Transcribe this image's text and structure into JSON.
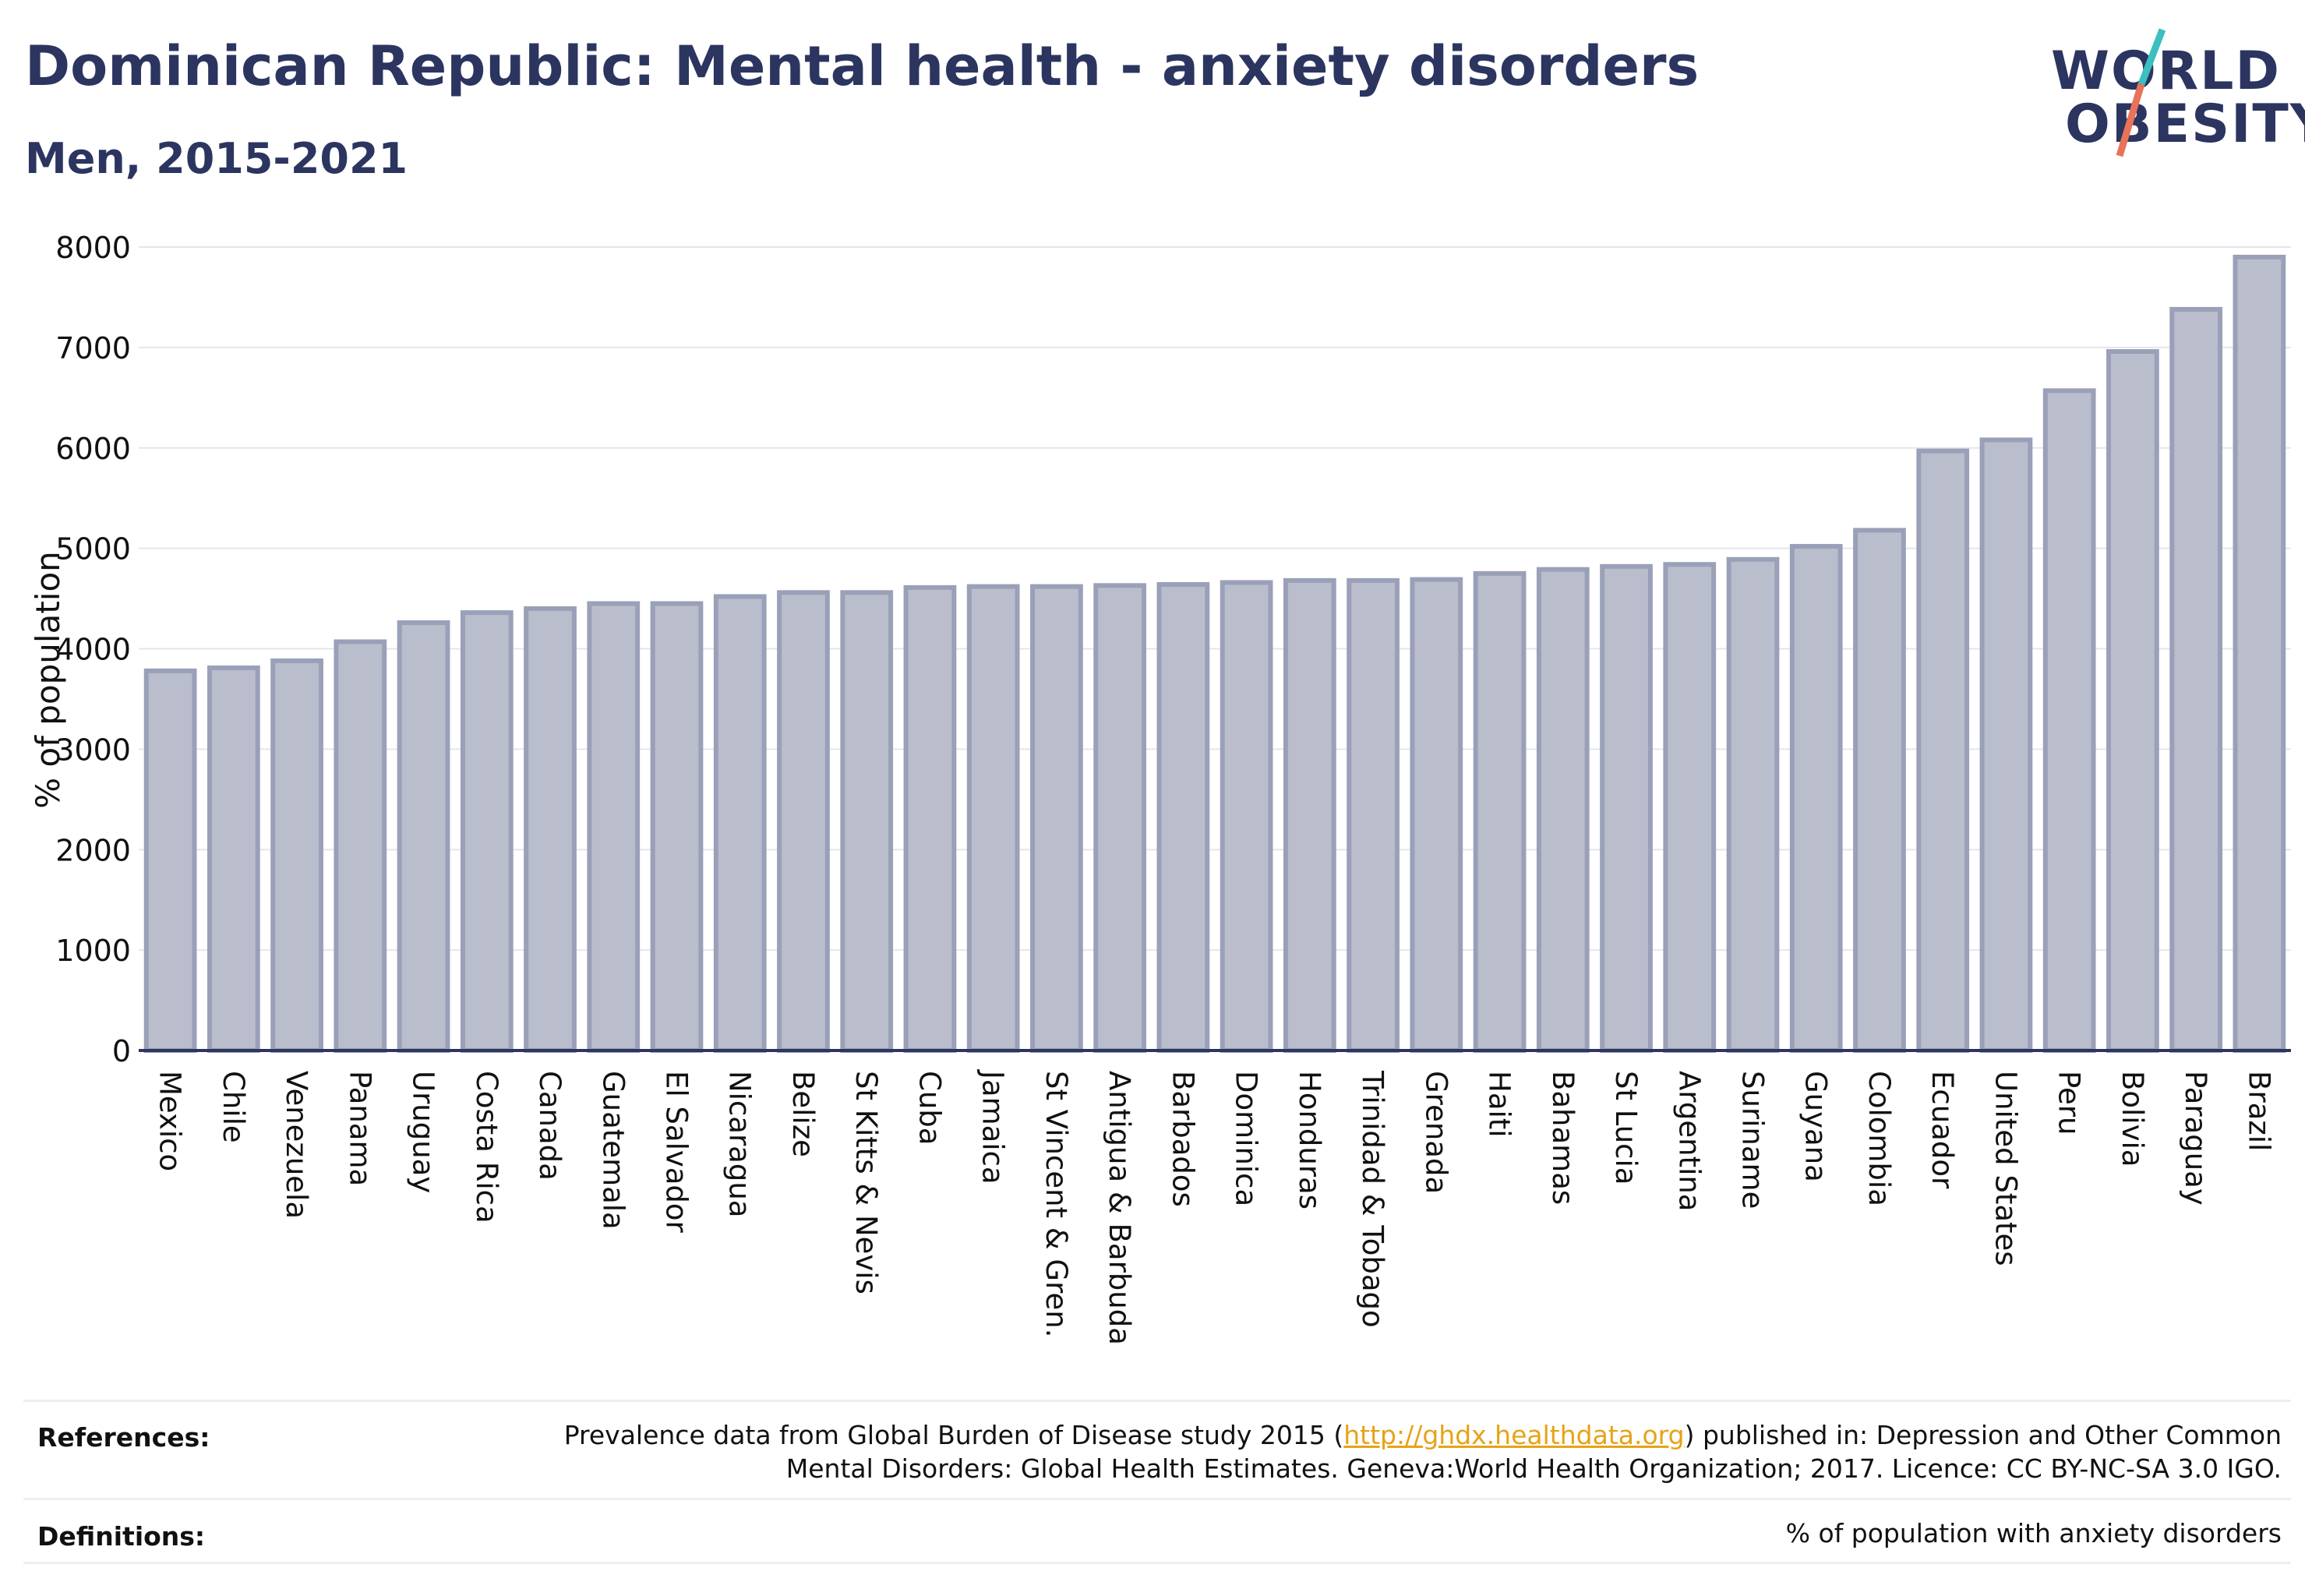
{
  "header": {
    "title": "Dominican Republic: Mental health - anxiety disorders",
    "subtitle": "Men, 2015-2021"
  },
  "logo": {
    "line1": "WORLD",
    "line2": "OBESITY",
    "brand_color": "#2b3560",
    "slash_color_top": "#3bbfbf",
    "slash_color_bottom": "#e8735a"
  },
  "chart_data": {
    "type": "bar",
    "title": "",
    "xlabel": "",
    "ylabel": "% of population",
    "ylim": [
      0,
      8000
    ],
    "yticks": [
      0,
      1000,
      2000,
      3000,
      4000,
      5000,
      6000,
      7000,
      8000
    ],
    "grid": true,
    "bar_color": "#b9bdcc",
    "bar_edge_color": "#9aa0b8",
    "categories": [
      "Mexico",
      "Chile",
      "Venezuela",
      "Panama",
      "Uruguay",
      "Costa Rica",
      "Canada",
      "Guatemala",
      "El Salvador",
      "Nicaragua",
      "Belize",
      "St Kitts & Nevis",
      "Cuba",
      "Jamaica",
      "St Vincent & Gren.",
      "Antigua & Barbuda",
      "Barbados",
      "Dominica",
      "Honduras",
      "Trinidad & Tobago",
      "Grenada",
      "Haiti",
      "Bahamas",
      "St Lucia",
      "Argentina",
      "Suriname",
      "Guyana",
      "Colombia",
      "Ecuador",
      "United States",
      "Peru",
      "Bolivia",
      "Paraguay",
      "Brazil"
    ],
    "values": [
      3780,
      3810,
      3880,
      4070,
      4260,
      4360,
      4400,
      4450,
      4450,
      4520,
      4560,
      4560,
      4610,
      4620,
      4620,
      4630,
      4640,
      4660,
      4680,
      4680,
      4690,
      4750,
      4790,
      4820,
      4840,
      4890,
      5020,
      5180,
      5970,
      6080,
      6570,
      6960,
      7380,
      7900
    ]
  },
  "footer": {
    "references_label": "References:",
    "references_line1_pre": "Prevalence data from Global Burden of Disease study 2015 (",
    "references_link": "http://ghdx.healthdata.org",
    "references_line1_post": ") published in: Depression and Other Common",
    "references_line2": "Mental Disorders: Global Health Estimates. Geneva:World Health Organization; 2017. Licence: CC BY-NC-SA 3.0 IGO.",
    "definitions_label": "Definitions:",
    "definitions_text": "% of population with anxiety disorders"
  }
}
